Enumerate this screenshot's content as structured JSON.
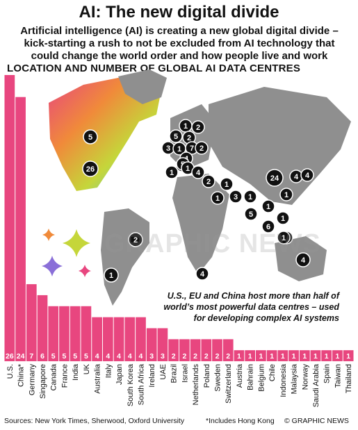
{
  "header": {
    "title": "AI: The new digital divide",
    "subtitle": "Artificial intelligence (AI) is creating a new global digital divide – kick-starting a rush to not be excluded from AI technology that could change the world order and how people live and work",
    "section_title": "LOCATION AND NUMBER OF GLOBAL AI DATA CENTRES"
  },
  "annotation": "U.S., EU and China host more than half of world’s most powerful data centres – used for developing complex AI systems",
  "footer": {
    "sources": "Sources: New York Times, Sherwood, Oxford University",
    "footnote": "*Includes Hong Kong",
    "credit": "© GRAPHIC NEWS"
  },
  "watermark": "GRAPHIC NEWS",
  "colors": {
    "bar_gradient": [
      "#e8467f",
      "#f08a3a",
      "#c5d63a",
      "#46c6e6",
      "#8a6fd8",
      "#e8467f"
    ],
    "land": "#8f8f8f",
    "marker": "#111111"
  },
  "chart_data": {
    "type": "bar",
    "categories": [
      "U.S.",
      "China*",
      "Germany",
      "Singapore",
      "Canada",
      "France",
      "India",
      "UK",
      "Australia",
      "Italy",
      "Japan",
      "South Korea",
      "South Africa",
      "Ireland",
      "UAE",
      "Brazil",
      "Israel",
      "Netherlands",
      "Poland",
      "Sweden",
      "Switzerland",
      "Austria",
      "Bahrain",
      "Belgium",
      "Chile",
      "Indonesia",
      "Malaysia",
      "Norway",
      "Saudi Arabia",
      "Spain",
      "Taiwan",
      "Thailand"
    ],
    "values": [
      26,
      24,
      7,
      6,
      5,
      5,
      5,
      5,
      4,
      4,
      4,
      4,
      4,
      3,
      3,
      2,
      2,
      2,
      2,
      2,
      2,
      1,
      1,
      1,
      1,
      1,
      1,
      1,
      1,
      1,
      1,
      1
    ],
    "ylim": [
      0,
      26
    ]
  },
  "map_markers": [
    {
      "count": "5"
    },
    {
      "count": "26"
    },
    {
      "count": "2"
    },
    {
      "count": "1"
    },
    {
      "count": "1"
    },
    {
      "count": "2"
    },
    {
      "count": "5"
    },
    {
      "count": "2"
    },
    {
      "count": "3"
    },
    {
      "count": "1"
    },
    {
      "count": "7"
    },
    {
      "count": "2"
    },
    {
      "count": "4"
    },
    {
      "count": "2"
    },
    {
      "count": "5"
    },
    {
      "count": "1"
    },
    {
      "count": "1"
    },
    {
      "count": "4"
    },
    {
      "count": "2"
    },
    {
      "count": "1"
    },
    {
      "count": "1"
    },
    {
      "count": "3"
    },
    {
      "count": "1"
    },
    {
      "count": "5"
    },
    {
      "count": "24"
    },
    {
      "count": "4"
    },
    {
      "count": "4"
    },
    {
      "count": "1"
    },
    {
      "count": "1"
    },
    {
      "count": "1"
    },
    {
      "count": "6"
    },
    {
      "count": "1"
    },
    {
      "count": "1"
    },
    {
      "count": "4"
    },
    {
      "count": "4"
    }
  ]
}
